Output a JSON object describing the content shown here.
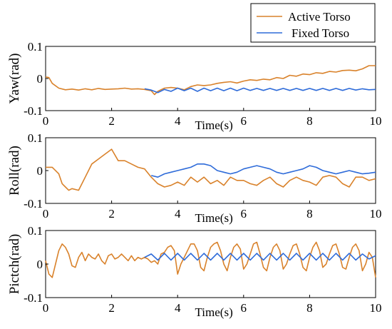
{
  "chart_data": [
    {
      "type": "line",
      "ylabel": "Yaw(rad)",
      "xlabel": "Time(s)",
      "xlim": [
        0,
        10
      ],
      "ylim": [
        -0.1,
        0.1
      ],
      "xticks": [
        "0",
        "2",
        "4",
        "6",
        "8",
        "10"
      ],
      "yticks": [
        "0.1",
        "0",
        "-0.1"
      ],
      "series": [
        {
          "name": "Active Torso",
          "color": "#d9822b",
          "x": [
            0,
            0.1,
            0.2,
            0.4,
            0.6,
            0.8,
            1.0,
            1.2,
            1.4,
            1.6,
            1.8,
            2.0,
            2.2,
            2.4,
            2.6,
            2.8,
            3.0,
            3.2,
            3.3,
            3.4,
            3.6,
            3.8,
            4.0,
            4.2,
            4.4,
            4.6,
            4.8,
            5.0,
            5.2,
            5.4,
            5.6,
            5.8,
            6.0,
            6.2,
            6.4,
            6.6,
            6.8,
            7.0,
            7.2,
            7.4,
            7.6,
            7.8,
            8.0,
            8.2,
            8.4,
            8.6,
            8.8,
            9.0,
            9.2,
            9.4,
            9.6,
            9.8,
            10.0
          ],
          "y": [
            0.005,
            0.003,
            -0.015,
            -0.03,
            -0.035,
            -0.033,
            -0.036,
            -0.032,
            -0.035,
            -0.031,
            -0.034,
            -0.033,
            -0.032,
            -0.03,
            -0.033,
            -0.032,
            -0.034,
            -0.038,
            -0.05,
            -0.04,
            -0.03,
            -0.028,
            -0.03,
            -0.035,
            -0.025,
            -0.02,
            -0.022,
            -0.02,
            -0.015,
            -0.012,
            -0.01,
            -0.014,
            -0.008,
            -0.004,
            -0.006,
            -0.002,
            -0.004,
            0.003,
            0.0,
            0.01,
            0.007,
            0.014,
            0.012,
            0.018,
            0.016,
            0.022,
            0.02,
            0.025,
            0.026,
            0.024,
            0.03,
            0.04,
            0.04
          ]
        },
        {
          "name": "Fixed Torso",
          "color": "#2e6bd9",
          "x": [
            3.0,
            3.2,
            3.4,
            3.6,
            3.8,
            4.0,
            4.2,
            4.4,
            4.6,
            4.8,
            5.0,
            5.2,
            5.4,
            5.6,
            5.8,
            6.0,
            6.2,
            6.4,
            6.6,
            6.8,
            7.0,
            7.2,
            7.4,
            7.6,
            7.8,
            8.0,
            8.2,
            8.4,
            8.6,
            8.8,
            9.0,
            9.2,
            9.4,
            9.6,
            9.8,
            10.0
          ],
          "y": [
            -0.032,
            -0.036,
            -0.044,
            -0.034,
            -0.04,
            -0.03,
            -0.038,
            -0.03,
            -0.04,
            -0.03,
            -0.038,
            -0.03,
            -0.038,
            -0.03,
            -0.038,
            -0.03,
            -0.037,
            -0.031,
            -0.037,
            -0.031,
            -0.037,
            -0.031,
            -0.037,
            -0.031,
            -0.037,
            -0.031,
            -0.037,
            -0.031,
            -0.037,
            -0.031,
            -0.037,
            -0.031,
            -0.036,
            -0.032,
            -0.035,
            -0.034
          ]
        }
      ]
    },
    {
      "type": "line",
      "ylabel": "Roll(rad)",
      "xlabel": "Time(s)",
      "xlim": [
        0,
        10
      ],
      "ylim": [
        -0.1,
        0.1
      ],
      "xticks": [
        "0",
        "2",
        "4",
        "6",
        "8",
        "10"
      ],
      "yticks": [
        "0.1",
        "0",
        "-0.1"
      ],
      "series": [
        {
          "name": "Active Torso",
          "color": "#d9822b",
          "x": [
            0,
            0.2,
            0.4,
            0.5,
            0.6,
            0.7,
            0.8,
            1.0,
            1.2,
            1.4,
            1.6,
            1.8,
            2.0,
            2.2,
            2.4,
            2.6,
            2.8,
            3.0,
            3.2,
            3.4,
            3.6,
            3.8,
            4.0,
            4.2,
            4.4,
            4.6,
            4.8,
            5.0,
            5.2,
            5.4,
            5.6,
            5.8,
            6.0,
            6.2,
            6.4,
            6.6,
            6.8,
            7.0,
            7.2,
            7.4,
            7.6,
            7.8,
            8.0,
            8.2,
            8.4,
            8.6,
            8.8,
            9.0,
            9.2,
            9.4,
            9.6,
            9.8,
            10.0
          ],
          "y": [
            0.01,
            0.01,
            -0.01,
            -0.04,
            -0.05,
            -0.06,
            -0.055,
            -0.06,
            -0.02,
            0.02,
            0.035,
            0.05,
            0.065,
            0.03,
            0.03,
            0.02,
            0.01,
            0.005,
            -0.02,
            -0.04,
            -0.05,
            -0.045,
            -0.035,
            -0.045,
            -0.02,
            -0.035,
            -0.02,
            -0.04,
            -0.03,
            -0.045,
            -0.02,
            -0.03,
            -0.03,
            -0.04,
            -0.045,
            -0.03,
            -0.02,
            -0.04,
            -0.05,
            -0.03,
            -0.02,
            -0.03,
            -0.035,
            -0.045,
            -0.02,
            -0.015,
            -0.02,
            -0.04,
            -0.05,
            -0.02,
            -0.02,
            -0.03,
            -0.025
          ]
        },
        {
          "name": "Fixed Torso",
          "color": "#2e6bd9",
          "x": [
            3.2,
            3.4,
            3.6,
            3.8,
            4.0,
            4.2,
            4.4,
            4.6,
            4.8,
            5.0,
            5.2,
            5.4,
            5.6,
            5.8,
            6.0,
            6.2,
            6.4,
            6.6,
            6.8,
            7.0,
            7.2,
            7.4,
            7.6,
            7.8,
            8.0,
            8.2,
            8.4,
            8.6,
            8.8,
            9.0,
            9.2,
            9.4,
            9.6,
            9.8,
            10.0
          ],
          "y": [
            -0.015,
            -0.02,
            -0.01,
            -0.005,
            0.0,
            0.005,
            0.01,
            0.02,
            0.02,
            0.015,
            0.0,
            -0.005,
            -0.01,
            -0.005,
            0.005,
            0.01,
            0.015,
            0.01,
            0.005,
            -0.005,
            -0.01,
            -0.005,
            0.0,
            0.005,
            0.015,
            0.01,
            0.0,
            -0.005,
            -0.01,
            -0.005,
            0.0,
            -0.005,
            -0.01,
            -0.008,
            -0.005
          ]
        }
      ]
    },
    {
      "type": "line",
      "ylabel": "Pictch(rad)",
      "xlabel": "Time(s)",
      "xlim": [
        0,
        10
      ],
      "ylim": [
        -0.1,
        0.1
      ],
      "xticks": [
        "0",
        "2",
        "4",
        "6",
        "8",
        "10"
      ],
      "yticks": [
        "0.1",
        "0",
        "-0.1"
      ],
      "series": [
        {
          "name": "Active Torso",
          "color": "#d9822b",
          "x": [
            0,
            0.1,
            0.2,
            0.3,
            0.4,
            0.5,
            0.6,
            0.7,
            0.8,
            0.9,
            1.0,
            1.1,
            1.2,
            1.3,
            1.4,
            1.5,
            1.6,
            1.7,
            1.8,
            1.9,
            2.0,
            2.1,
            2.2,
            2.3,
            2.4,
            2.5,
            2.6,
            2.7,
            2.8,
            2.9,
            3.0,
            3.1,
            3.2,
            3.3,
            3.4,
            3.5,
            3.6,
            3.7,
            3.8,
            3.9,
            4.0,
            4.1,
            4.2,
            4.3,
            4.4,
            4.5,
            4.6,
            4.7,
            4.8,
            4.9,
            5.0,
            5.1,
            5.2,
            5.3,
            5.4,
            5.5,
            5.6,
            5.7,
            5.8,
            5.9,
            6.0,
            6.1,
            6.2,
            6.3,
            6.4,
            6.5,
            6.6,
            6.7,
            6.8,
            6.9,
            7.0,
            7.1,
            7.2,
            7.3,
            7.4,
            7.5,
            7.6,
            7.7,
            7.8,
            7.9,
            8.0,
            8.1,
            8.2,
            8.3,
            8.4,
            8.5,
            8.6,
            8.7,
            8.8,
            8.9,
            9.0,
            9.1,
            9.2,
            9.3,
            9.4,
            9.5,
            9.6,
            9.7,
            9.8,
            9.9,
            10.0
          ],
          "y": [
            0.01,
            -0.03,
            -0.04,
            0.0,
            0.04,
            0.06,
            0.05,
            0.03,
            -0.005,
            -0.01,
            0.02,
            0.035,
            0.01,
            0.03,
            0.02,
            0.015,
            0.03,
            0.01,
            0.0,
            0.025,
            0.03,
            0.015,
            0.02,
            0.03,
            0.02,
            0.01,
            0.025,
            0.01,
            0.02,
            0.015,
            0.02,
            0.015,
            0.005,
            0.01,
            0.0,
            0.03,
            0.035,
            0.05,
            0.055,
            0.04,
            -0.03,
            0.0,
            0.02,
            0.04,
            0.06,
            0.06,
            0.04,
            -0.01,
            -0.02,
            0.02,
            0.05,
            0.06,
            0.065,
            0.04,
            0.0,
            -0.02,
            0.02,
            0.05,
            0.06,
            0.045,
            -0.015,
            0.0,
            0.03,
            0.06,
            0.065,
            0.03,
            -0.01,
            -0.02,
            0.02,
            0.05,
            0.06,
            0.04,
            -0.015,
            0.0,
            0.03,
            0.055,
            0.06,
            0.03,
            -0.01,
            -0.02,
            0.02,
            0.05,
            0.065,
            0.04,
            -0.01,
            0.0,
            0.03,
            0.055,
            0.06,
            0.03,
            -0.01,
            -0.015,
            0.02,
            0.05,
            0.06,
            0.04,
            -0.02,
            0.0,
            0.035,
            0.02,
            -0.04
          ]
        },
        {
          "name": "Fixed Torso",
          "color": "#2e6bd9",
          "x": [
            3.0,
            3.2,
            3.4,
            3.6,
            3.8,
            4.0,
            4.2,
            4.4,
            4.6,
            4.8,
            5.0,
            5.2,
            5.4,
            5.6,
            5.8,
            6.0,
            6.2,
            6.4,
            6.6,
            6.8,
            7.0,
            7.2,
            7.4,
            7.6,
            7.8,
            8.0,
            8.2,
            8.4,
            8.6,
            8.8,
            9.0,
            9.2,
            9.4,
            9.6,
            9.8,
            10.0
          ],
          "y": [
            0.02,
            0.03,
            0.012,
            0.032,
            0.012,
            0.032,
            0.012,
            0.032,
            0.012,
            0.032,
            0.012,
            0.032,
            0.012,
            0.032,
            0.012,
            0.032,
            0.012,
            0.032,
            0.012,
            0.032,
            0.012,
            0.032,
            0.012,
            0.032,
            0.012,
            0.032,
            0.012,
            0.032,
            0.012,
            0.032,
            0.012,
            0.032,
            0.012,
            0.03,
            0.015,
            0.025
          ]
        }
      ]
    }
  ],
  "legend": {
    "entries": [
      {
        "label": "Active Torso",
        "color": "#d9822b"
      },
      {
        "label": "Fixed Torso",
        "color": "#2e6bd9"
      }
    ],
    "placement": "top-right"
  }
}
